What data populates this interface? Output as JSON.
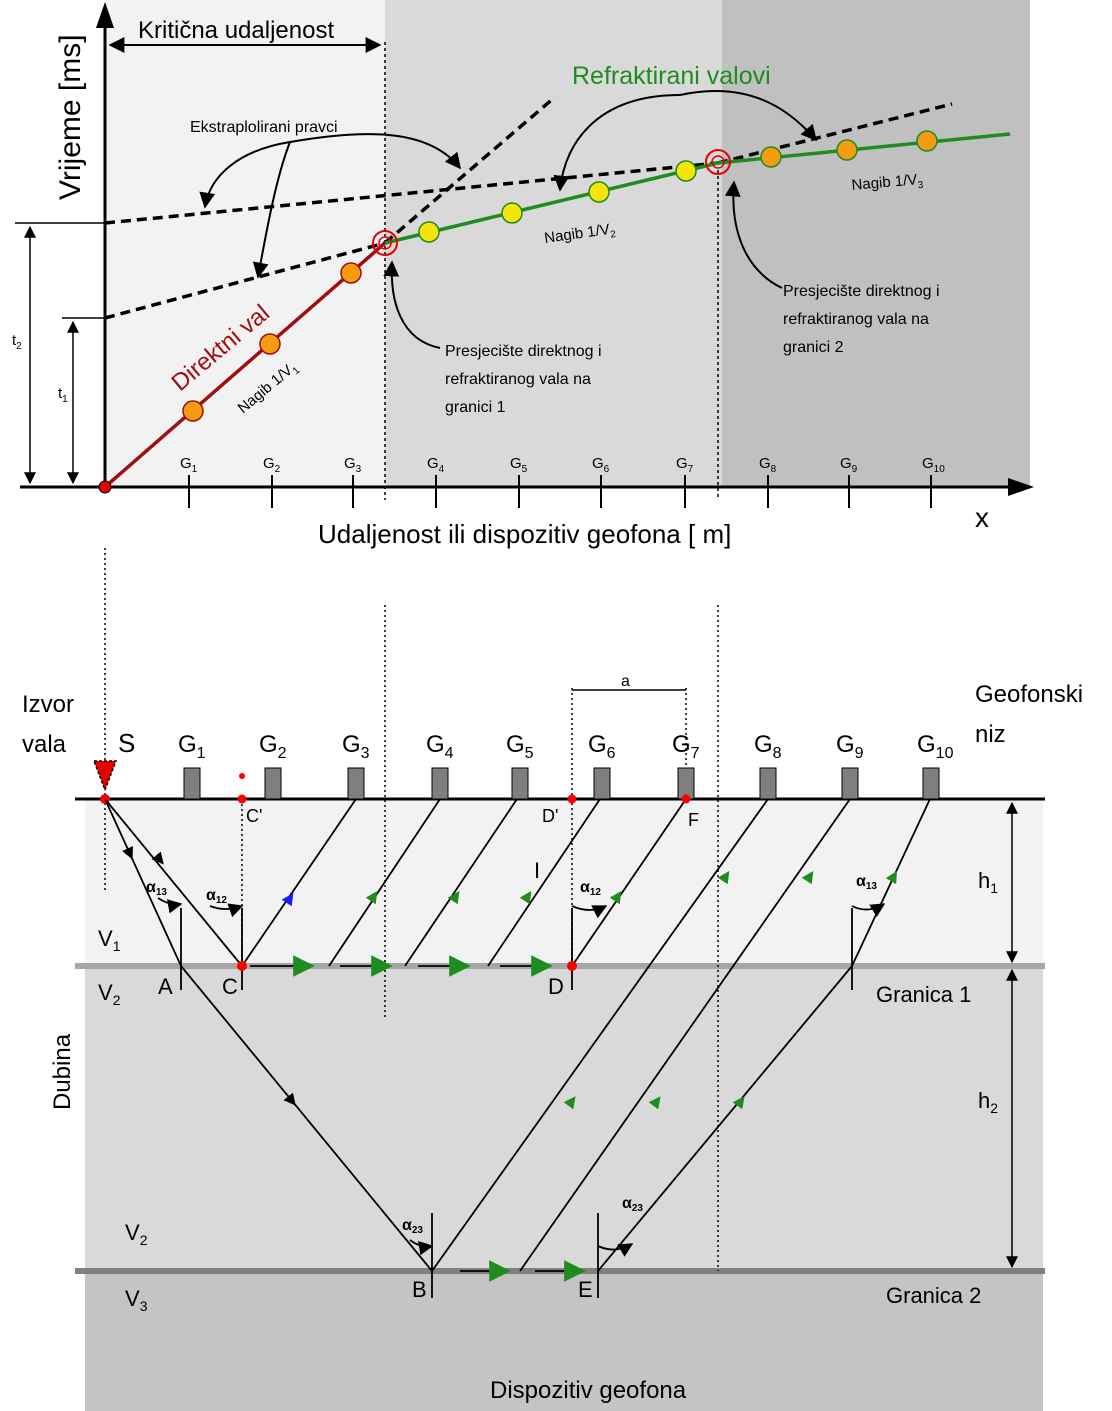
{
  "graph": {
    "y_axis_title": "Vrijeme [ms]",
    "x_axis_title": "Udaljenost ili dispozitiv geofona [ m]",
    "x_axis_symbol": "x",
    "critical_distance_label": "Kritična udaljenost",
    "refracted_label": "Refraktirani valovi",
    "extrapolated_label": "Ekstraplolirani pravci",
    "direct_label": "Direktni val",
    "slope1_label": "Nagib 1/V",
    "slope1_sub": "1",
    "slope2_label": "Nagib 1/V",
    "slope2_sub": "2",
    "slope3_label": "Nagib 1/V",
    "slope3_sub": "3",
    "t1_label": "t",
    "t1_sub": "1",
    "t2_label": "t",
    "t2_sub": "2",
    "intersection1_lines": [
      "Presjecište direktnog i",
      "refraktiranog vala na",
      "granici 1"
    ],
    "intersection2_lines": [
      "Presjecište direktnog i",
      "refraktiranog vala na",
      "granici 2"
    ],
    "geophone_ticks": [
      {
        "g": "G",
        "n": "1"
      },
      {
        "g": "G",
        "n": "2"
      },
      {
        "g": "G",
        "n": "3"
      },
      {
        "g": "G",
        "n": "4"
      },
      {
        "g": "G",
        "n": "5"
      },
      {
        "g": "G",
        "n": "6"
      },
      {
        "g": "G",
        "n": "7"
      },
      {
        "g": "G",
        "n": "8"
      },
      {
        "g": "G",
        "n": "9"
      },
      {
        "g": "G",
        "n": "10"
      }
    ],
    "colors": {
      "direct": "#a00f0f",
      "refracted": "#1e8c1e",
      "point_orange": "#f39c12",
      "point_yellow": "#f5e50c",
      "zone1": "#f2f2f2",
      "zone2": "#d9d9d9",
      "zone3": "#c0c0c0"
    }
  },
  "section": {
    "source_label_1": "Izvor",
    "source_label_2": "vala",
    "source_symbol": "S",
    "geophone_array_1": "Geofonski",
    "geophone_array_2": "niz",
    "geophones": [
      {
        "g": "G",
        "n": "1"
      },
      {
        "g": "G",
        "n": "2"
      },
      {
        "g": "G",
        "n": "3"
      },
      {
        "g": "G",
        "n": "4"
      },
      {
        "g": "G",
        "n": "5"
      },
      {
        "g": "G",
        "n": "6"
      },
      {
        "g": "G",
        "n": "7"
      },
      {
        "g": "G",
        "n": "8"
      },
      {
        "g": "G",
        "n": "9"
      },
      {
        "g": "G",
        "n": "10"
      }
    ],
    "spacing_label": "a",
    "point_c_prime": "C'",
    "point_d_prime": "D'",
    "point_f": "F",
    "point_i": "I",
    "point_a": "A",
    "point_c": "C",
    "point_d": "D",
    "point_b": "B",
    "point_e": "E",
    "alpha13": {
      "a": "α",
      "s": "13"
    },
    "alpha12": {
      "a": "α",
      "s": "12"
    },
    "alpha23": {
      "a": "α",
      "s": "23"
    },
    "v1": {
      "v": "V",
      "s": "1"
    },
    "v2": {
      "v": "V",
      "s": "2"
    },
    "v3": {
      "v": "V",
      "s": "3"
    },
    "h1": {
      "h": "h",
      "s": "1"
    },
    "h2": {
      "h": "h",
      "s": "2"
    },
    "boundary1": "Granica 1",
    "boundary2": "Granica 2",
    "depth_label": "Dubina",
    "array_label": "Dispozitiv geofona",
    "colors": {
      "layer1": "#f2f2f2",
      "layer2": "#d9d9d9",
      "layer3": "#c4c4c4",
      "boundary": "#a6a6a6",
      "geophone": "#7f7f7f",
      "arrow_green": "#1e8c1e",
      "arrow_blue": "#1a1aff",
      "point_red": "#ff0000",
      "source": "#e60000"
    }
  }
}
